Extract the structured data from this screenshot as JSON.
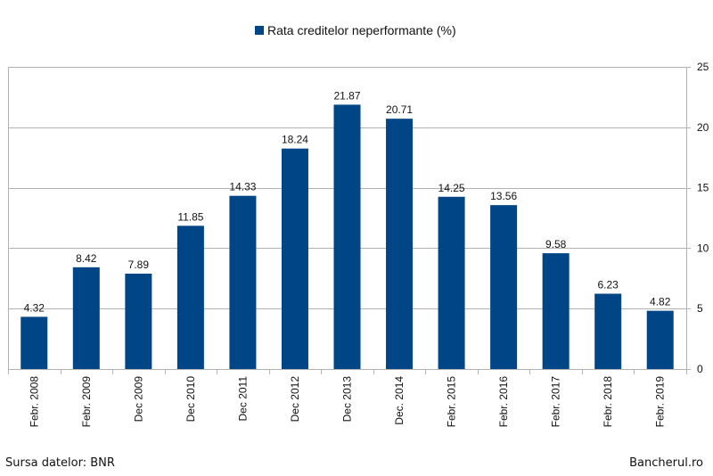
{
  "chart_data": {
    "type": "bar",
    "title": "",
    "xlabel": "",
    "ylabel": "",
    "categories": [
      "Febr. 2008",
      "Febr. 2009",
      "Dec 2009",
      "Dec 2010",
      "Dec 2011",
      "Dec 2012",
      "Dec 2013",
      "Dec. 2014",
      "Febr. 2015",
      "Febr. 2016",
      "Febr. 2017",
      "Febr. 2018",
      "Febr. 2019"
    ],
    "series": [
      {
        "name": "Rata creditelor neperformante (%)",
        "values": [
          4.32,
          8.42,
          7.89,
          11.85,
          14.33,
          18.24,
          21.87,
          20.71,
          14.25,
          13.56,
          9.58,
          6.23,
          4.82
        ]
      }
    ],
    "data_labels": [
      "4.32",
      "8.42",
      "7.89",
      "11.85",
      "14.33",
      "18.24",
      "21.87",
      "20.71",
      "14.25",
      "13.56",
      "9.58",
      "6.23",
      "4.82"
    ],
    "ylim": [
      0,
      25
    ],
    "yticks": [
      0,
      5,
      10,
      15,
      20,
      25
    ],
    "y_axis_side": "right",
    "grid": true,
    "legend_placement": "top-center",
    "bar_color": "#004586"
  },
  "footer": {
    "source": "Sursa datelor: BNR",
    "brand": "Bancherul.ro"
  }
}
